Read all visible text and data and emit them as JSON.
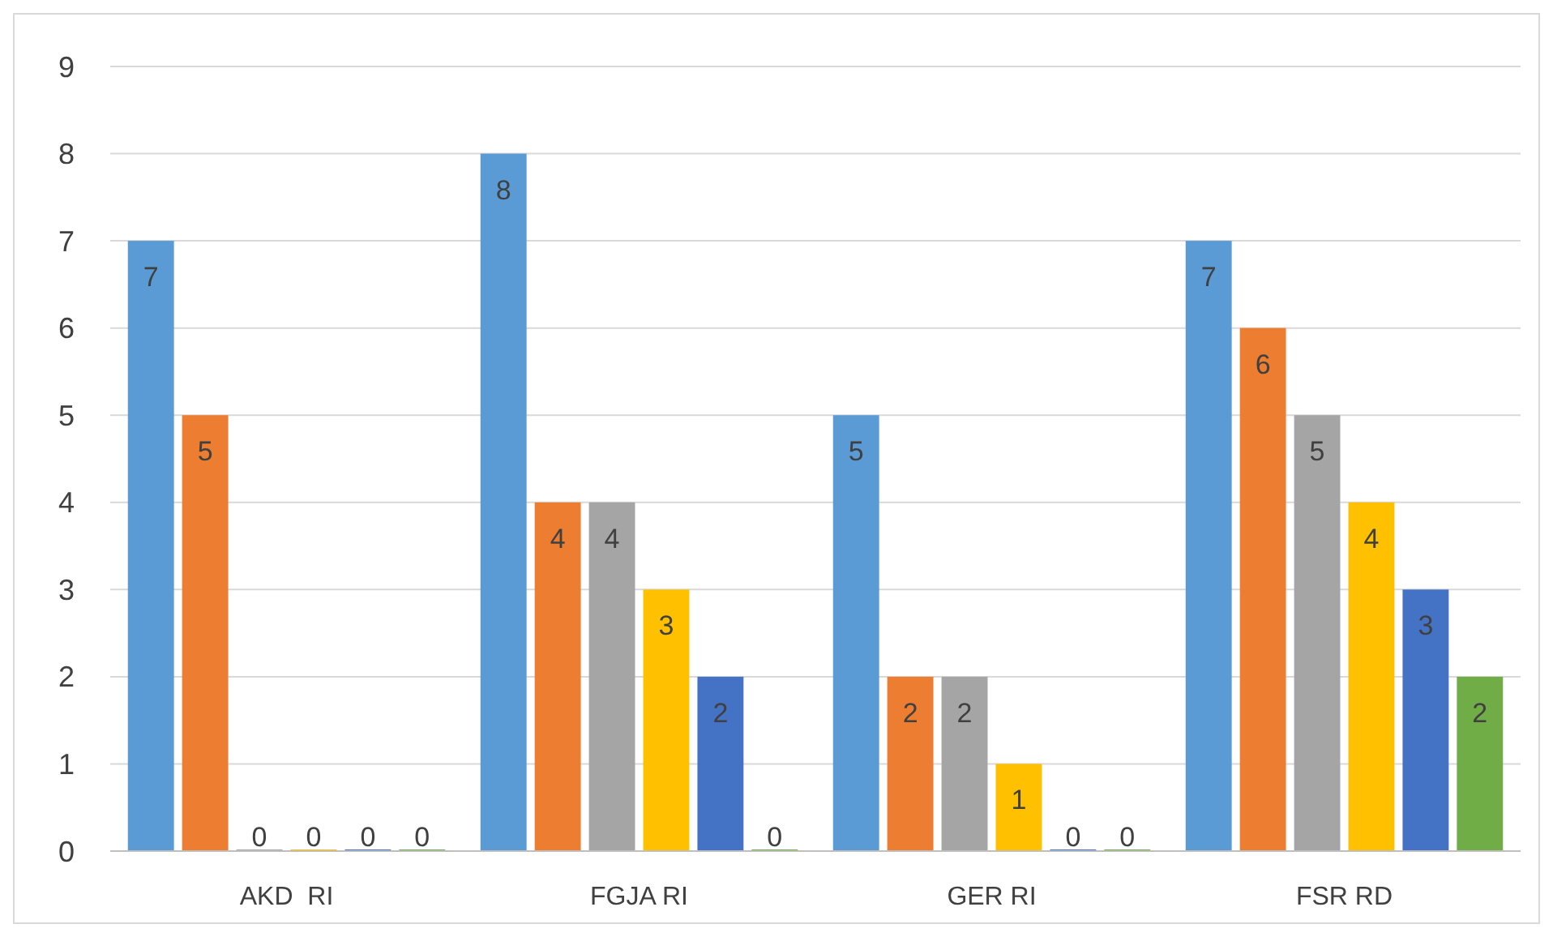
{
  "chart_data": {
    "type": "bar",
    "categories": [
      "AKD  RI",
      "FGJA RI",
      "GER RI",
      "FSR RD"
    ],
    "series": [
      {
        "color": "#5b9bd5",
        "values": [
          7,
          8,
          5,
          7
        ]
      },
      {
        "color": "#ed7d31",
        "values": [
          5,
          4,
          2,
          6
        ]
      },
      {
        "color": "#a5a5a5",
        "values": [
          0,
          4,
          2,
          5
        ]
      },
      {
        "color": "#ffc000",
        "values": [
          0,
          3,
          1,
          4
        ]
      },
      {
        "color": "#4472c4",
        "values": [
          0,
          2,
          0,
          3
        ]
      },
      {
        "color": "#70ad47",
        "values": [
          0,
          0,
          0,
          2
        ]
      }
    ],
    "ylim": [
      0,
      9
    ],
    "yticks": [
      0,
      1,
      2,
      3,
      4,
      5,
      6,
      7,
      8,
      9
    ],
    "grid": "y",
    "data_labels": true
  }
}
